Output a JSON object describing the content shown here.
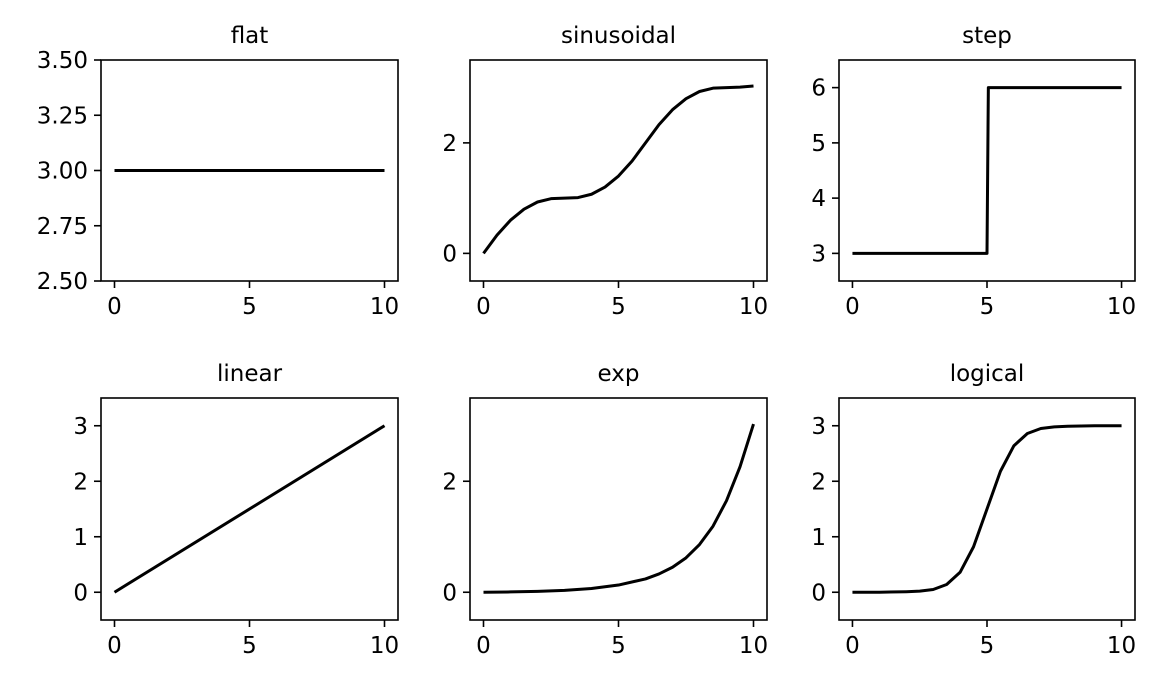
{
  "chart_data": [
    {
      "type": "line",
      "title": "flat",
      "xlim": [
        -0.5,
        10.5
      ],
      "ylim": [
        2.5,
        3.5
      ],
      "xticks": [
        0,
        5,
        10
      ],
      "xtick_labels": [
        "0",
        "5",
        "10"
      ],
      "yticks": [
        2.5,
        2.75,
        3.0,
        3.25,
        3.5
      ],
      "ytick_labels": [
        "2.50",
        "2.75",
        "3.00",
        "3.25",
        "3.50"
      ],
      "grid": false,
      "color": "#000000",
      "series": [
        {
          "x": [
            0,
            10
          ],
          "y": [
            3.0,
            3.0
          ]
        }
      ]
    },
    {
      "type": "line",
      "title": "sinusoidal",
      "xlim": [
        -0.5,
        10.5
      ],
      "ylim": [
        -0.5,
        3.5
      ],
      "xticks": [
        0,
        5,
        10
      ],
      "xtick_labels": [
        "0",
        "5",
        "10"
      ],
      "yticks": [
        0,
        2
      ],
      "ytick_labels": [
        "0",
        "2"
      ],
      "grid": false,
      "color": "#000000",
      "series": [
        {
          "x": [
            0,
            0.5,
            1,
            1.5,
            2,
            2.5,
            3,
            3.5,
            4,
            4.5,
            5,
            5.5,
            6,
            6.5,
            7,
            7.5,
            8,
            8.5,
            9,
            9.5,
            10
          ],
          "y": [
            0,
            0.33,
            0.6,
            0.8,
            0.93,
            0.99,
            1.0,
            1.01,
            1.07,
            1.2,
            1.4,
            1.67,
            2.0,
            2.33,
            2.6,
            2.8,
            2.93,
            2.99,
            3.0,
            3.01,
            3.03
          ]
        }
      ]
    },
    {
      "type": "line",
      "title": "step",
      "xlim": [
        -0.5,
        10.5
      ],
      "ylim": [
        2.5,
        6.5
      ],
      "xticks": [
        0,
        5,
        10
      ],
      "xtick_labels": [
        "0",
        "5",
        "10"
      ],
      "yticks": [
        3,
        4,
        5,
        6
      ],
      "ytick_labels": [
        "3",
        "4",
        "5",
        "6"
      ],
      "grid": false,
      "color": "#000000",
      "series": [
        {
          "x": [
            0,
            5,
            5.05,
            10
          ],
          "y": [
            3,
            3,
            6,
            6
          ]
        }
      ]
    },
    {
      "type": "line",
      "title": "linear",
      "xlim": [
        -0.5,
        10.5
      ],
      "ylim": [
        -0.5,
        3.5
      ],
      "xticks": [
        0,
        5,
        10
      ],
      "xtick_labels": [
        "0",
        "5",
        "10"
      ],
      "yticks": [
        0,
        1,
        2,
        3
      ],
      "ytick_labels": [
        "0",
        "1",
        "2",
        "3"
      ],
      "grid": false,
      "color": "#000000",
      "series": [
        {
          "x": [
            0,
            10
          ],
          "y": [
            0,
            3
          ]
        }
      ]
    },
    {
      "type": "line",
      "title": "exp",
      "xlim": [
        -0.5,
        10.5
      ],
      "ylim": [
        -0.5,
        3.5
      ],
      "xticks": [
        0,
        5,
        10
      ],
      "xtick_labels": [
        "0",
        "5",
        "10"
      ],
      "yticks": [
        0,
        2
      ],
      "ytick_labels": [
        "0",
        "2"
      ],
      "grid": false,
      "color": "#000000",
      "series": [
        {
          "x": [
            0,
            1,
            2,
            3,
            4,
            5,
            6,
            6.5,
            7,
            7.5,
            8,
            8.5,
            9,
            9.5,
            10
          ],
          "y": [
            0,
            0.006,
            0.016,
            0.034,
            0.068,
            0.13,
            0.24,
            0.33,
            0.45,
            0.62,
            0.86,
            1.19,
            1.65,
            2.26,
            3.03
          ]
        }
      ]
    },
    {
      "type": "line",
      "title": "logical",
      "xlim": [
        -0.5,
        10.5
      ],
      "ylim": [
        -0.5,
        3.5
      ],
      "xticks": [
        0,
        5,
        10
      ],
      "xtick_labels": [
        "0",
        "5",
        "10"
      ],
      "yticks": [
        0,
        1,
        2,
        3
      ],
      "ytick_labels": [
        "0",
        "1",
        "2",
        "3"
      ],
      "grid": false,
      "color": "#000000",
      "series": [
        {
          "x": [
            0,
            1,
            2,
            2.5,
            3,
            3.5,
            4,
            4.5,
            5,
            5.5,
            6,
            6.5,
            7,
            7.5,
            8,
            9,
            10
          ],
          "y": [
            0,
            0.0,
            0.01,
            0.02,
            0.05,
            0.14,
            0.36,
            0.82,
            1.5,
            2.18,
            2.64,
            2.86,
            2.95,
            2.98,
            2.99,
            3.0,
            3.0
          ]
        }
      ]
    }
  ]
}
